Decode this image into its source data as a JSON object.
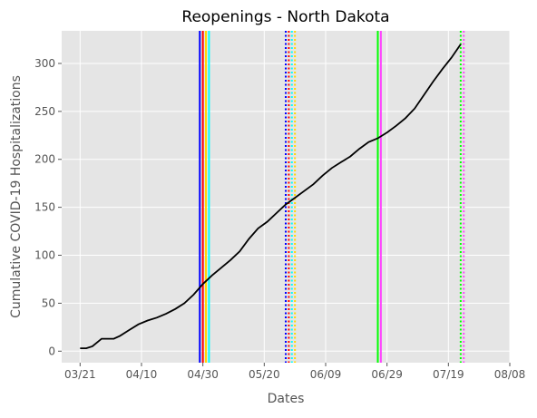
{
  "chart_data": {
    "type": "line",
    "title": "Reopenings - North Dakota",
    "xlabel": "Dates",
    "ylabel": "Cumulative COVID-19 Hospitalizations",
    "x_ticks": [
      "03/21",
      "04/10",
      "04/30",
      "05/20",
      "06/09",
      "06/29",
      "07/19",
      "08/08"
    ],
    "y_ticks": [
      0,
      50,
      100,
      150,
      200,
      250,
      300
    ],
    "x_range": [
      "2020-03-15",
      "2020-08-08"
    ],
    "ylim": [
      -12,
      334
    ],
    "grid": true,
    "series": [
      {
        "color": "#000000",
        "points": [
          [
            "2020-03-21",
            3
          ],
          [
            "2020-03-23",
            3
          ],
          [
            "2020-03-25",
            5
          ],
          [
            "2020-03-28",
            13
          ],
          [
            "2020-03-30",
            13
          ],
          [
            "2020-04-01",
            13
          ],
          [
            "2020-04-03",
            16
          ],
          [
            "2020-04-06",
            22
          ],
          [
            "2020-04-09",
            28
          ],
          [
            "2020-04-12",
            32
          ],
          [
            "2020-04-15",
            35
          ],
          [
            "2020-04-18",
            39
          ],
          [
            "2020-04-21",
            44
          ],
          [
            "2020-04-24",
            50
          ],
          [
            "2020-04-27",
            59
          ],
          [
            "2020-04-30",
            70
          ],
          [
            "2020-05-03",
            79
          ],
          [
            "2020-05-06",
            87
          ],
          [
            "2020-05-09",
            95
          ],
          [
            "2020-05-12",
            104
          ],
          [
            "2020-05-15",
            117
          ],
          [
            "2020-05-18",
            128
          ],
          [
            "2020-05-21",
            135
          ],
          [
            "2020-05-24",
            144
          ],
          [
            "2020-05-27",
            153
          ],
          [
            "2020-05-30",
            160
          ],
          [
            "2020-06-02",
            167
          ],
          [
            "2020-06-05",
            174
          ],
          [
            "2020-06-08",
            183
          ],
          [
            "2020-06-11",
            191
          ],
          [
            "2020-06-14",
            197
          ],
          [
            "2020-06-17",
            203
          ],
          [
            "2020-06-20",
            211
          ],
          [
            "2020-06-23",
            218
          ],
          [
            "2020-06-26",
            222
          ],
          [
            "2020-06-29",
            228
          ],
          [
            "2020-07-02",
            235
          ],
          [
            "2020-07-05",
            243
          ],
          [
            "2020-07-08",
            253
          ],
          [
            "2020-07-11",
            267
          ],
          [
            "2020-07-14",
            281
          ],
          [
            "2020-07-17",
            294
          ],
          [
            "2020-07-20",
            306
          ],
          [
            "2020-07-23",
            320
          ]
        ]
      }
    ],
    "reopening_lines": [
      {
        "date": "2020-04-29",
        "color": "#0000ff",
        "style": "solid"
      },
      {
        "date": "2020-04-30",
        "color": "#ff0000",
        "style": "solid"
      },
      {
        "date": "2020-05-01",
        "color": "#ffd700",
        "style": "solid"
      },
      {
        "date": "2020-05-02",
        "color": "#00ffff",
        "style": "solid"
      },
      {
        "date": "2020-05-27",
        "color": "#0000ff",
        "style": "dotted"
      },
      {
        "date": "2020-05-28",
        "color": "#ff0000",
        "style": "dotted"
      },
      {
        "date": "2020-05-29",
        "color": "#00ffff",
        "style": "dotted"
      },
      {
        "date": "2020-05-30",
        "color": "#ffd700",
        "style": "dotted"
      },
      {
        "date": "2020-06-26",
        "color": "#00ff00",
        "style": "solid"
      },
      {
        "date": "2020-06-27",
        "color": "#ff44ff",
        "style": "solid"
      },
      {
        "date": "2020-07-23",
        "color": "#00ff00",
        "style": "dotted"
      },
      {
        "date": "2020-07-24",
        "color": "#ff44ff",
        "style": "dotted"
      }
    ],
    "colors": {
      "plot_background": "#e5e5e5",
      "grid": "#ffffff",
      "tick_label": "#555555",
      "axis_label": "#555555",
      "title": "#000000"
    }
  }
}
